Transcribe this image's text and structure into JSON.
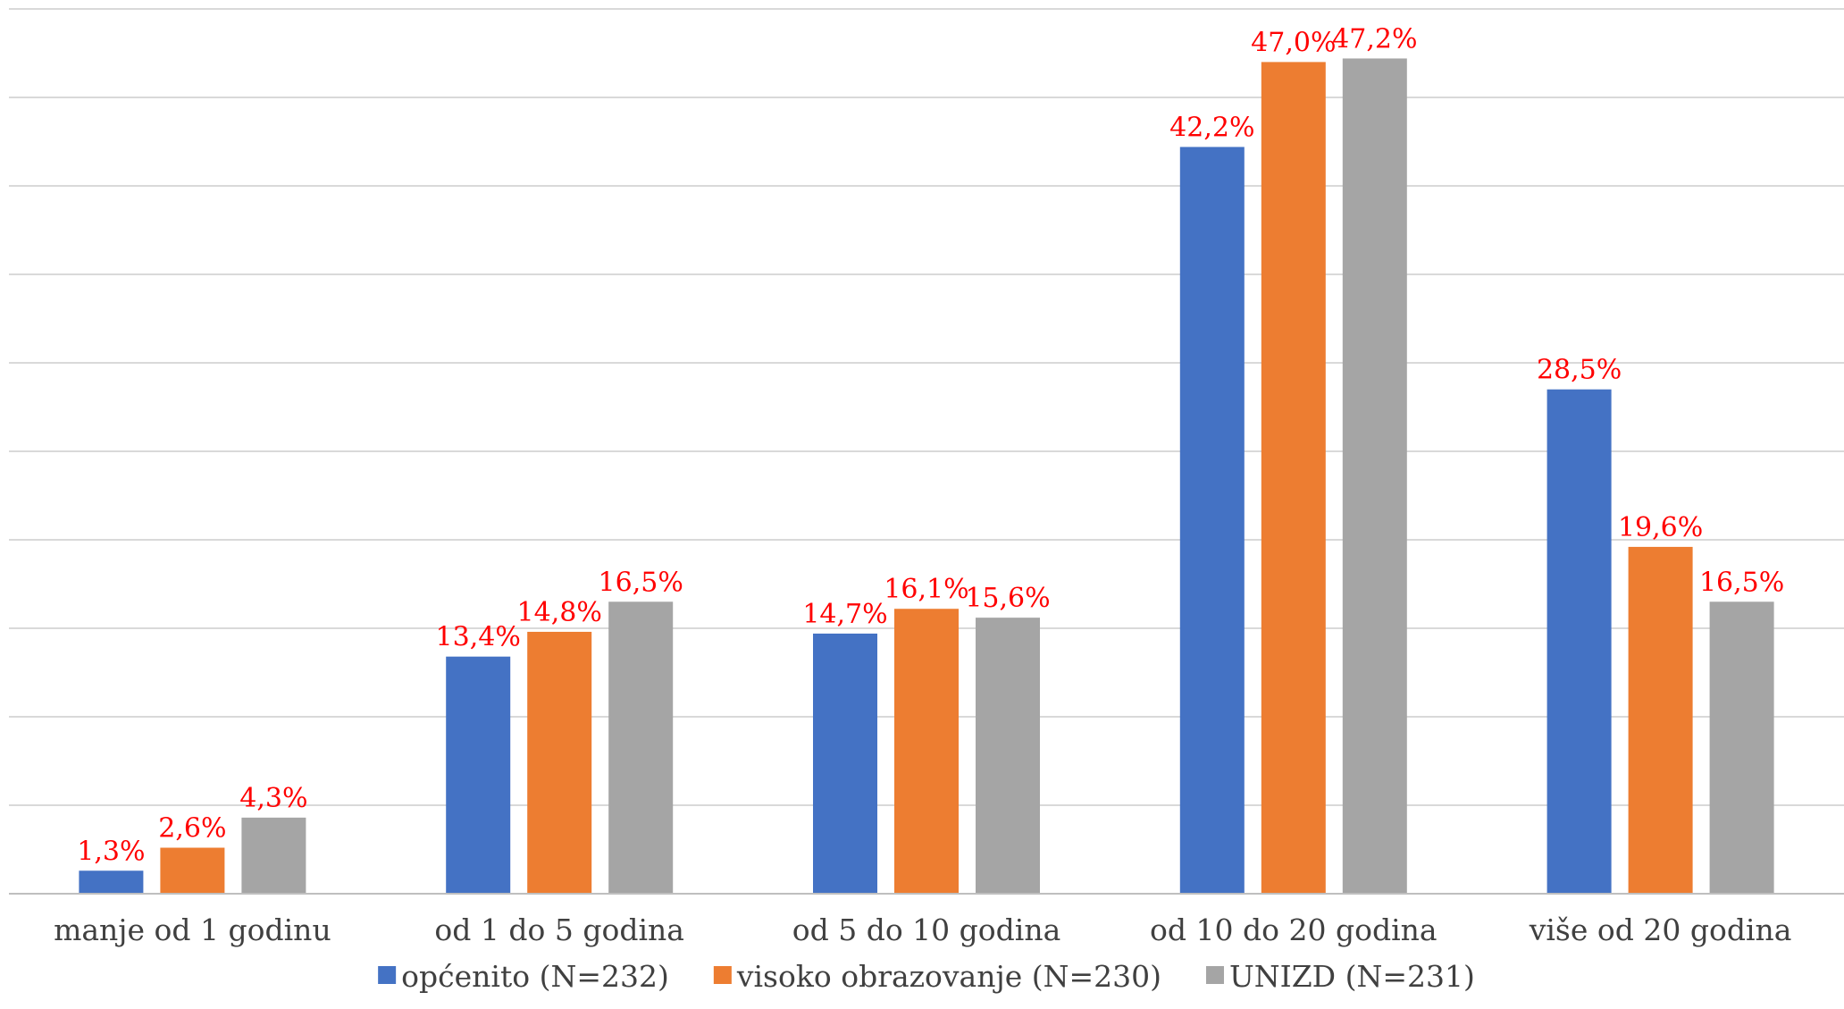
{
  "chart_data": {
    "type": "bar",
    "categories": [
      "manje od 1 godinu",
      "od 1 do 5 godina",
      "od 5 do 10 godina",
      "od 10 do 20 godina",
      "više od 20 godina"
    ],
    "series": [
      {
        "name": "općenito (N=232)",
        "color": "#4472c4",
        "values": [
          1.3,
          13.4,
          14.7,
          42.2,
          28.5
        ],
        "labels": [
          "1,3%",
          "13,4%",
          "14,7%",
          "42,2%",
          "28,5%"
        ]
      },
      {
        "name": "visoko obrazovanje (N=230)",
        "color": "#ed7d31",
        "values": [
          2.6,
          14.8,
          16.1,
          47.0,
          19.6
        ],
        "labels": [
          "2,6%",
          "14,8%",
          "16,1%",
          "47,0%",
          "19,6%"
        ]
      },
      {
        "name": "UNIZD (N=231)",
        "color": "#a5a5a5",
        "values": [
          4.3,
          16.5,
          15.6,
          47.2,
          16.5
        ],
        "labels": [
          "4,3%",
          "16,5%",
          "15,6%",
          "47,2%",
          "16,5%"
        ]
      }
    ],
    "ylim": [
      0,
      50
    ],
    "gridlines": true,
    "y_tick_labels_visible": false,
    "legend_position": "bottom",
    "data_label_color": "#ff0000"
  }
}
